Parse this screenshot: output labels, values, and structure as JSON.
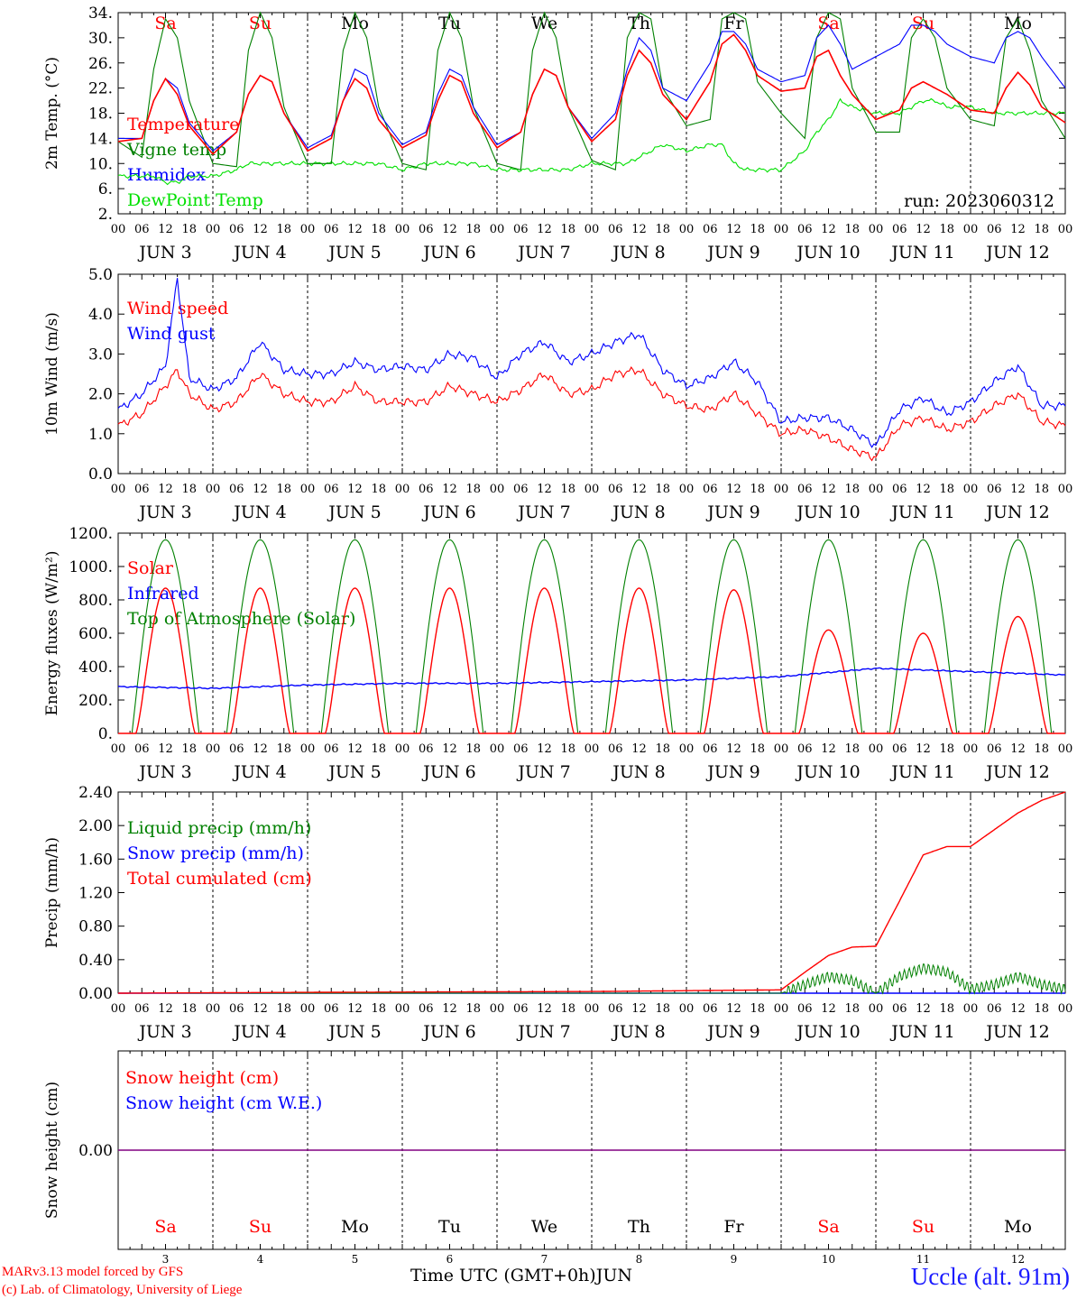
{
  "run_label": "run: 2023060312",
  "x_title": "Time UTC (GMT+0h)",
  "x_month": "JUN",
  "footer": {
    "line1": "MARv3.13 model forced by GFS",
    "line2": "(c) Lab. of Climatology, University of Liege",
    "station": "Uccle (alt. 91m)"
  },
  "days": [
    {
      "num": "3",
      "abbr": "Sa",
      "weekend": true
    },
    {
      "num": "4",
      "abbr": "Su",
      "weekend": true
    },
    {
      "num": "5",
      "abbr": "Mo",
      "weekend": false
    },
    {
      "num": "6",
      "abbr": "Tu",
      "weekend": false
    },
    {
      "num": "7",
      "abbr": "We",
      "weekend": false
    },
    {
      "num": "8",
      "abbr": "Th",
      "weekend": false
    },
    {
      "num": "9",
      "abbr": "Fr",
      "weekend": false
    },
    {
      "num": "10",
      "abbr": "Sa",
      "weekend": true
    },
    {
      "num": "11",
      "abbr": "Su",
      "weekend": true
    },
    {
      "num": "12",
      "abbr": "Mo",
      "weekend": false
    }
  ],
  "hour_labels": [
    "00",
    "06",
    "12",
    "18"
  ],
  "final_hour_label": "00",
  "colors": {
    "red": "#ff0000",
    "blue": "#0000ff",
    "green": "#008000",
    "lightgreen": "#00e000",
    "purple": "#800080"
  },
  "chart_data": [
    {
      "type": "line",
      "ylabel": "2m Temp. (°C)",
      "ylim": [
        2,
        34
      ],
      "yticks": [
        "2.",
        "6.",
        "10.",
        "14.",
        "18.",
        "22.",
        "26.",
        "30.",
        "34."
      ],
      "x_unit": "hours since 2023-06-03 00 UTC",
      "x": [
        0,
        6,
        9,
        12,
        15,
        18,
        24,
        30,
        33,
        36,
        39,
        42,
        48,
        54,
        57,
        60,
        63,
        66,
        72,
        78,
        81,
        84,
        87,
        90,
        96,
        102,
        105,
        108,
        111,
        114,
        120,
        126,
        129,
        132,
        135,
        138,
        144,
        150,
        153,
        156,
        159,
        162,
        168,
        174,
        177,
        180,
        183,
        186,
        192,
        198,
        201,
        204,
        207,
        210,
        216,
        222,
        225,
        228,
        231,
        234,
        240
      ],
      "series": [
        {
          "name": "Temperature",
          "color": "red",
          "values": [
            13.5,
            14,
            20,
            23.5,
            21,
            16,
            11.5,
            15,
            21,
            24,
            23,
            18,
            12,
            14,
            20,
            23.5,
            22,
            17,
            12.5,
            14.5,
            20,
            24,
            23,
            18,
            12.5,
            15,
            21,
            25,
            24,
            19,
            13.5,
            17,
            24,
            28,
            26,
            21,
            17,
            23,
            29,
            30.5,
            28,
            24,
            21.5,
            22,
            27,
            28,
            24,
            21,
            17,
            18.5,
            22,
            23,
            22,
            21,
            18.5,
            18,
            22,
            24.5,
            22.5,
            19,
            16.5
          ]
        },
        {
          "name": "Vigne temp",
          "color": "green",
          "values": [
            13.5,
            11,
            25,
            33,
            30,
            20,
            10,
            9.5,
            28,
            34,
            30,
            19,
            10,
            10,
            28,
            34,
            30,
            19,
            10,
            9,
            28,
            34,
            30,
            19,
            10,
            9,
            28,
            34,
            30,
            19,
            10.5,
            9,
            30,
            34,
            33,
            22,
            16,
            17,
            33,
            34,
            33,
            23,
            18,
            14,
            30,
            34,
            33,
            22,
            15,
            15,
            30,
            33,
            30,
            22,
            17,
            16,
            30,
            33,
            28,
            20,
            14
          ]
        },
        {
          "name": "Humidex",
          "color": "blue",
          "values": [
            14,
            14,
            20,
            23.5,
            22,
            16.5,
            12,
            15,
            21,
            24,
            23,
            18,
            12.5,
            14.5,
            20,
            25,
            24,
            18,
            13,
            15,
            21,
            25,
            24,
            19,
            13,
            15,
            21,
            25,
            24,
            19,
            14,
            18,
            25,
            30,
            28,
            22,
            20,
            26,
            31,
            31,
            29,
            25,
            23,
            24,
            30,
            32,
            29,
            25,
            27,
            29,
            32,
            32,
            31,
            29,
            27,
            26,
            30,
            31,
            30,
            27,
            22
          ]
        },
        {
          "name": "DewPoint Temp",
          "color": "lightgreen",
          "values": [
            8,
            8,
            8,
            7,
            7,
            8,
            8,
            9,
            10,
            10,
            10,
            10,
            10,
            10,
            10,
            10,
            10,
            10,
            9,
            10,
            10,
            10,
            10,
            10,
            9,
            9,
            9,
            9,
            9,
            9,
            10,
            10,
            10,
            11,
            12,
            13,
            12,
            13,
            13,
            10,
            9,
            9,
            9,
            12,
            15,
            17,
            20,
            19,
            18,
            18,
            19,
            20,
            20,
            19,
            19,
            18,
            18,
            18,
            18,
            18,
            18
          ]
        }
      ]
    },
    {
      "type": "line",
      "ylabel": "10m Wind (m/s)",
      "ylim": [
        0,
        5
      ],
      "yticks": [
        "0.0",
        "1.0",
        "2.0",
        "3.0",
        "4.0",
        "5.0"
      ],
      "x_unit": "hours since 2023-06-03 00 UTC",
      "x": [
        0,
        6,
        12,
        15,
        18,
        24,
        30,
        36,
        42,
        48,
        54,
        60,
        66,
        72,
        78,
        84,
        90,
        96,
        102,
        108,
        114,
        120,
        126,
        132,
        138,
        144,
        150,
        156,
        162,
        168,
        174,
        180,
        186,
        192,
        198,
        204,
        210,
        216,
        222,
        228,
        234,
        240
      ],
      "series": [
        {
          "name": "Wind speed",
          "color": "red",
          "values": [
            1.2,
            1.5,
            2.2,
            2.6,
            2.0,
            1.6,
            1.8,
            2.5,
            2.0,
            1.8,
            1.8,
            2.2,
            1.8,
            1.8,
            1.8,
            2.2,
            2.0,
            1.8,
            2.1,
            2.5,
            2.0,
            2.1,
            2.5,
            2.6,
            2.0,
            1.7,
            1.6,
            2.0,
            1.5,
            1.0,
            1.1,
            0.9,
            0.6,
            0.4,
            1.2,
            1.4,
            1.1,
            1.3,
            1.7,
            2.0,
            1.3,
            1.2
          ]
        },
        {
          "name": "Wind gust",
          "color": "blue",
          "values": [
            1.6,
            2.0,
            2.7,
            4.9,
            2.4,
            2.1,
            2.4,
            3.3,
            2.6,
            2.5,
            2.5,
            2.8,
            2.6,
            2.7,
            2.6,
            3.0,
            2.9,
            2.4,
            3.0,
            3.3,
            2.8,
            3.0,
            3.3,
            3.5,
            2.6,
            2.2,
            2.4,
            2.8,
            2.3,
            1.3,
            1.4,
            1.4,
            1.1,
            0.7,
            1.6,
            1.9,
            1.5,
            1.8,
            2.3,
            2.7,
            1.7,
            1.7
          ]
        }
      ]
    },
    {
      "type": "line",
      "ylabel": "Energy fluxes (W/m²)",
      "ylim": [
        0,
        1200
      ],
      "yticks": [
        "0.",
        "200.",
        "400.",
        "600.",
        "800.",
        "1000.",
        "1200."
      ],
      "x_unit": "hours since 2023-06-03 00 UTC",
      "x": [
        0,
        24,
        48,
        72,
        96,
        120,
        144,
        168,
        192,
        216,
        240
      ],
      "series": [
        {
          "name": "Solar",
          "color": "red",
          "daily_peak": [
            870,
            870,
            870,
            870,
            870,
            870,
            860,
            620,
            600,
            700
          ]
        },
        {
          "name": "Infrared",
          "color": "blue",
          "values": [
            280,
            270,
            290,
            300,
            300,
            310,
            320,
            340,
            390,
            370,
            350
          ]
        },
        {
          "name": "Top of Atmosphere (Solar)",
          "color": "green",
          "daily_peak": [
            1160,
            1160,
            1160,
            1160,
            1160,
            1160,
            1160,
            1160,
            1160,
            1160
          ]
        }
      ]
    },
    {
      "type": "line",
      "ylabel": "Precip (mm/h)",
      "ylim": [
        0,
        2.4
      ],
      "yticks": [
        "0.00",
        "0.40",
        "0.80",
        "1.20",
        "1.60",
        "2.00",
        "2.40"
      ],
      "x_unit": "hours since 2023-06-03 00 UTC",
      "x": [
        0,
        48,
        120,
        168,
        174,
        180,
        186,
        192,
        198,
        204,
        210,
        216,
        222,
        228,
        234,
        240
      ],
      "series": [
        {
          "name": "Liquid precip (mm/h)",
          "color": "green",
          "values": [
            0,
            0,
            0,
            0,
            0.1,
            0.2,
            0.15,
            0,
            0.2,
            0.3,
            0.25,
            0.05,
            0.1,
            0.2,
            0.1,
            0.05
          ]
        },
        {
          "name": "Snow precip (mm/h)",
          "color": "blue",
          "values": [
            0,
            0,
            0,
            0,
            0,
            0,
            0,
            0,
            0,
            0,
            0,
            0,
            0,
            0,
            0,
            0
          ]
        },
        {
          "name": "Total cumulated (cm)",
          "color": "red",
          "values": [
            0,
            0.01,
            0.02,
            0.04,
            0.25,
            0.45,
            0.55,
            0.56,
            1.1,
            1.65,
            1.75,
            1.75,
            1.95,
            2.15,
            2.3,
            2.4
          ]
        }
      ]
    },
    {
      "type": "line",
      "ylabel": "Snow height (cm)",
      "ylim": [
        -1,
        1
      ],
      "yticks": [
        "0.00"
      ],
      "x_unit": "hours since 2023-06-03 00 UTC",
      "x": [
        0,
        240
      ],
      "series": [
        {
          "name": "Snow height (cm)",
          "color": "red",
          "values": [
            0,
            0
          ]
        },
        {
          "name": "Snow height (cm W.E.)",
          "color": "blue",
          "values": [
            0,
            0
          ]
        }
      ]
    }
  ]
}
